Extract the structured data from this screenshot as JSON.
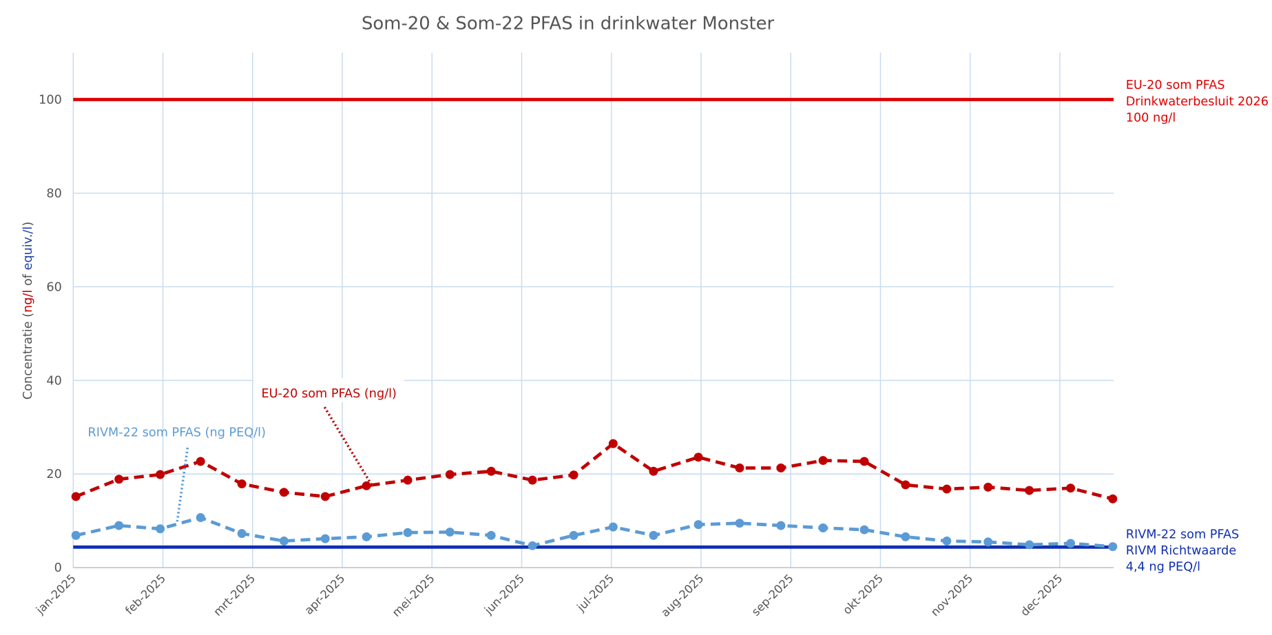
{
  "chart_data": {
    "type": "line",
    "title": "Som-20 & Som-22 PFAS in drinkwater Monster",
    "ylabel_parts": [
      {
        "text": "Concentratie (",
        "color": "#555555"
      },
      {
        "text": "ng/l",
        "color": "#c00000"
      },
      {
        "text": " of ",
        "color": "#555555"
      },
      {
        "text": "equiv./l",
        "color": "#1f3fa8"
      },
      {
        "text": ")",
        "color": "#555555"
      }
    ],
    "x": [
      0.03,
      0.51,
      0.97,
      1.42,
      1.88,
      2.35,
      2.81,
      3.27,
      3.73,
      4.2,
      4.66,
      5.12,
      5.58,
      6.02,
      6.47,
      6.97,
      7.43,
      7.89,
      8.36,
      8.82,
      9.28,
      9.74,
      10.2,
      10.66,
      11.12,
      11.59
    ],
    "xlim": [
      0,
      11.6
    ],
    "xticks": [
      {
        "value": 0,
        "label": "jan-2025"
      },
      {
        "value": 1,
        "label": "feb-2025"
      },
      {
        "value": 2,
        "label": "mrt-2025"
      },
      {
        "value": 3,
        "label": "apr-2025"
      },
      {
        "value": 4,
        "label": "mei-2025"
      },
      {
        "value": 5,
        "label": "jun-2025"
      },
      {
        "value": 6,
        "label": "jul-2025"
      },
      {
        "value": 7,
        "label": "aug-2025"
      },
      {
        "value": 8,
        "label": "sep-2025"
      },
      {
        "value": 9,
        "label": "okt-2025"
      },
      {
        "value": 10,
        "label": "nov-2025"
      },
      {
        "value": 11,
        "label": "dec-2025"
      }
    ],
    "ylim": [
      0,
      110
    ],
    "yticks": [
      0,
      20,
      40,
      60,
      80,
      100
    ],
    "grid": true,
    "series": [
      {
        "name": "EU-20 som PFAS (ng/l)",
        "color": "#c00000",
        "dashed": true,
        "values": [
          15.2,
          18.9,
          19.9,
          22.7,
          17.9,
          16.1,
          15.2,
          17.5,
          18.7,
          19.9,
          20.6,
          18.7,
          19.8,
          26.5,
          20.6,
          23.6,
          21.3,
          21.3,
          22.9,
          22.7,
          17.7,
          16.8,
          17.2,
          16.5,
          17.0,
          14.7
        ]
      },
      {
        "name": "RIVM-22 som PFAS (ng PEQ/l)",
        "color": "#5b9bd5",
        "dashed": true,
        "values": [
          6.9,
          9.0,
          8.3,
          10.7,
          7.3,
          5.7,
          6.2,
          6.6,
          7.5,
          7.6,
          6.9,
          4.7,
          6.9,
          8.7,
          6.9,
          9.2,
          9.5,
          9.0,
          8.5,
          8.1,
          6.6,
          5.7,
          5.5,
          4.9,
          5.2,
          4.5
        ]
      }
    ],
    "reference_lines": [
      {
        "value": 100,
        "color": "#e00000",
        "label": [
          "EU-20 som PFAS",
          "Drinkwaterbesluit 2026",
          "100 ng/l"
        ]
      },
      {
        "value": 4.4,
        "color": "#1030b0",
        "label": [
          "RIVM-22 som PFAS",
          "RIVM Richtwaarde",
          "4,4 ng PEQ/l"
        ]
      }
    ]
  }
}
